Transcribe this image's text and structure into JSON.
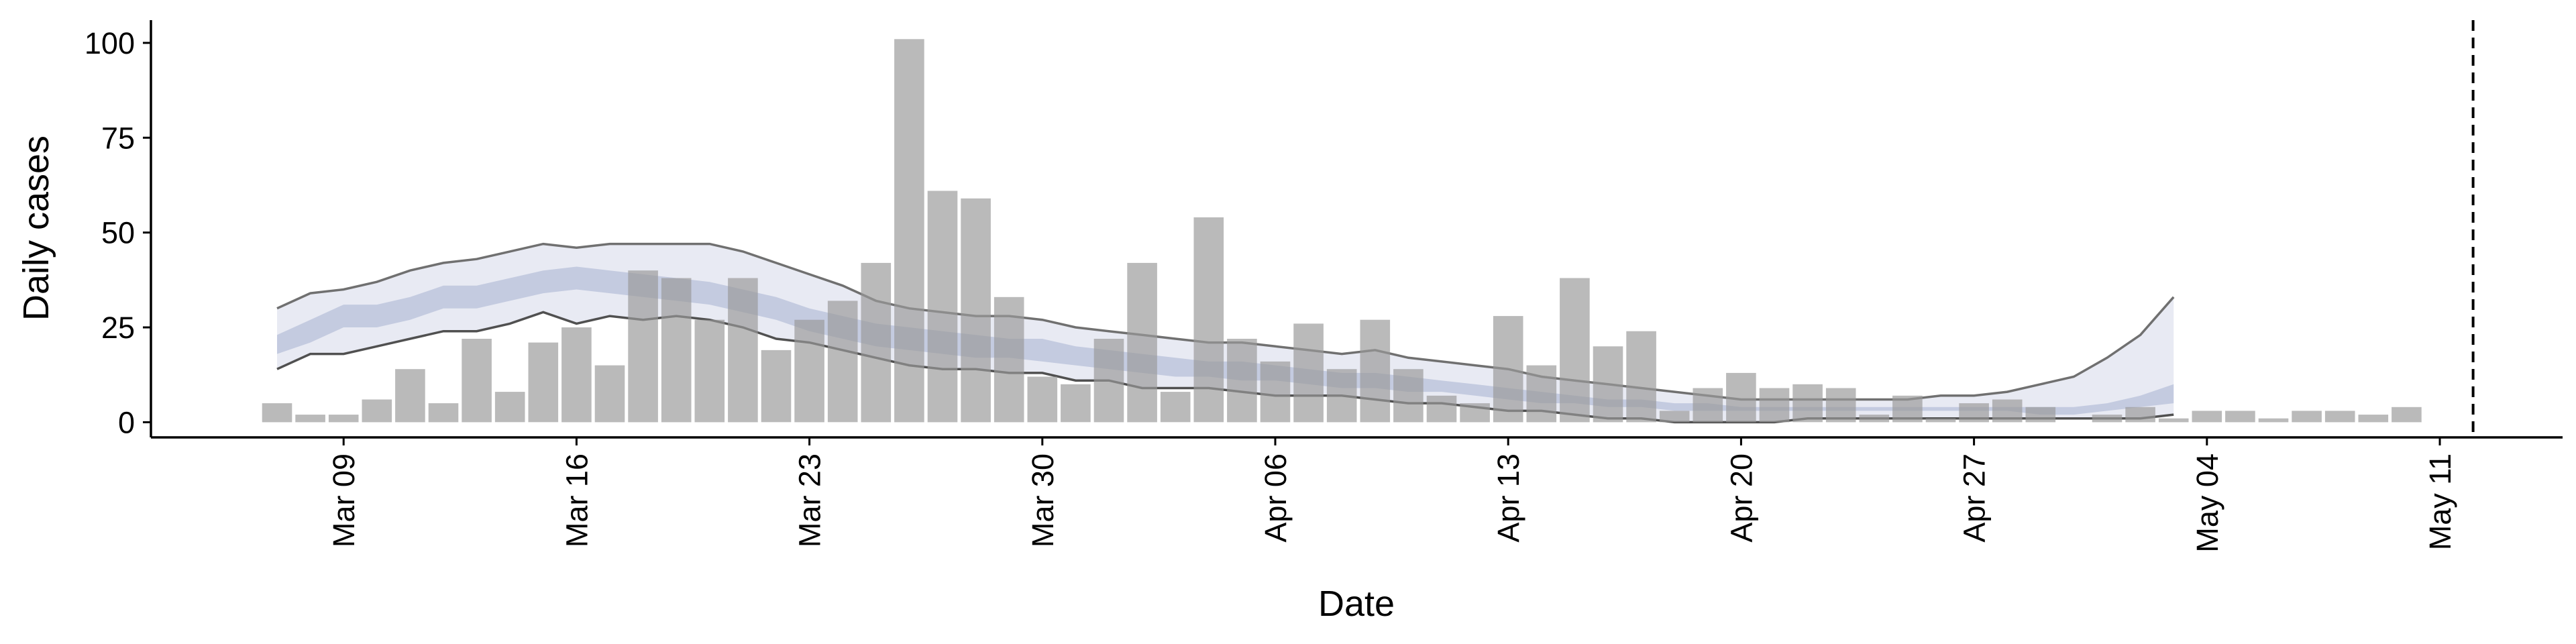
{
  "chart_data": {
    "type": "bar",
    "title": "",
    "xlabel": "Date",
    "ylabel": "Daily cases",
    "ylim": [
      -4,
      106
    ],
    "grid": false,
    "legend": "none",
    "x_start": "2020-03-07",
    "x_ticks": [
      {
        "date": "2020-03-09",
        "label": "Mar 09"
      },
      {
        "date": "2020-03-16",
        "label": "Mar 16"
      },
      {
        "date": "2020-03-23",
        "label": "Mar 23"
      },
      {
        "date": "2020-03-30",
        "label": "Mar 30"
      },
      {
        "date": "2020-04-06",
        "label": "Apr 06"
      },
      {
        "date": "2020-04-13",
        "label": "Apr 13"
      },
      {
        "date": "2020-04-20",
        "label": "Apr 20"
      },
      {
        "date": "2020-04-27",
        "label": "Apr 27"
      },
      {
        "date": "2020-05-04",
        "label": "May 04"
      },
      {
        "date": "2020-05-11",
        "label": "May 11"
      }
    ],
    "y_ticks": [
      0,
      25,
      50,
      75,
      100
    ],
    "reference_line": {
      "date": "2020-05-12",
      "style": "dashed",
      "color": "#000000"
    },
    "series": [
      {
        "kind": "bars",
        "color": "#9a9a9a",
        "values": [
          5,
          2,
          2,
          6,
          14,
          5,
          22,
          8,
          21,
          25,
          15,
          40,
          38,
          27,
          38,
          19,
          27,
          32,
          42,
          101,
          61,
          59,
          33,
          12,
          10,
          22,
          42,
          8,
          54,
          22,
          16,
          26,
          14,
          27,
          14,
          7,
          5,
          28,
          15,
          38,
          20,
          24,
          3,
          9,
          13,
          9,
          10,
          9,
          2,
          7,
          1,
          5,
          6,
          4,
          0,
          2,
          4,
          1,
          3,
          3,
          1,
          3,
          3,
          2,
          4
        ]
      },
      {
        "kind": "estimate",
        "color_outer": "#e8eaf3",
        "color_inner": "#c4cbe0",
        "x_start": "2020-03-07",
        "upper90": [
          30,
          34,
          35,
          37,
          40,
          42,
          43,
          45,
          47,
          46,
          47,
          47,
          47,
          47,
          45,
          42,
          39,
          36,
          32,
          30,
          29,
          28,
          28,
          27,
          25,
          24,
          23,
          22,
          21,
          21,
          20,
          19,
          18,
          19,
          17,
          16,
          15,
          14,
          12,
          11,
          10,
          9,
          8,
          7,
          6,
          6,
          6,
          6,
          6,
          6,
          7,
          7,
          8,
          10,
          12,
          17,
          23,
          33
        ],
        "upper50": [
          23,
          27,
          31,
          31,
          33,
          36,
          36,
          38,
          40,
          41,
          40,
          39,
          38,
          37,
          35,
          33,
          30,
          28,
          26,
          25,
          24,
          23,
          22,
          22,
          20,
          19,
          18,
          17,
          16,
          16,
          15,
          14,
          13,
          13,
          12,
          11,
          10,
          9,
          8,
          7,
          6,
          6,
          5,
          5,
          4,
          4,
          4,
          4,
          4,
          4,
          4,
          4,
          4,
          4,
          4,
          5,
          7,
          10
        ],
        "lower50": [
          18,
          21,
          25,
          25,
          27,
          30,
          30,
          32,
          34,
          35,
          34,
          33,
          32,
          31,
          29,
          27,
          24,
          22,
          20,
          19,
          18,
          17,
          17,
          16,
          15,
          14,
          13,
          12,
          12,
          11,
          11,
          10,
          9,
          9,
          8,
          8,
          7,
          6,
          5,
          5,
          4,
          4,
          3,
          3,
          3,
          3,
          3,
          3,
          3,
          3,
          3,
          3,
          3,
          2,
          2,
          3,
          4,
          5
        ],
        "lower90": [
          14,
          18,
          18,
          20,
          22,
          24,
          24,
          26,
          29,
          26,
          28,
          27,
          28,
          27,
          25,
          22,
          21,
          19,
          17,
          15,
          14,
          14,
          13,
          13,
          11,
          11,
          9,
          9,
          9,
          8,
          7,
          7,
          7,
          6,
          5,
          5,
          4,
          3,
          3,
          2,
          1,
          1,
          0,
          0,
          0,
          0,
          1,
          1,
          1,
          1,
          1,
          1,
          1,
          1,
          1,
          1,
          1,
          2
        ]
      }
    ]
  }
}
